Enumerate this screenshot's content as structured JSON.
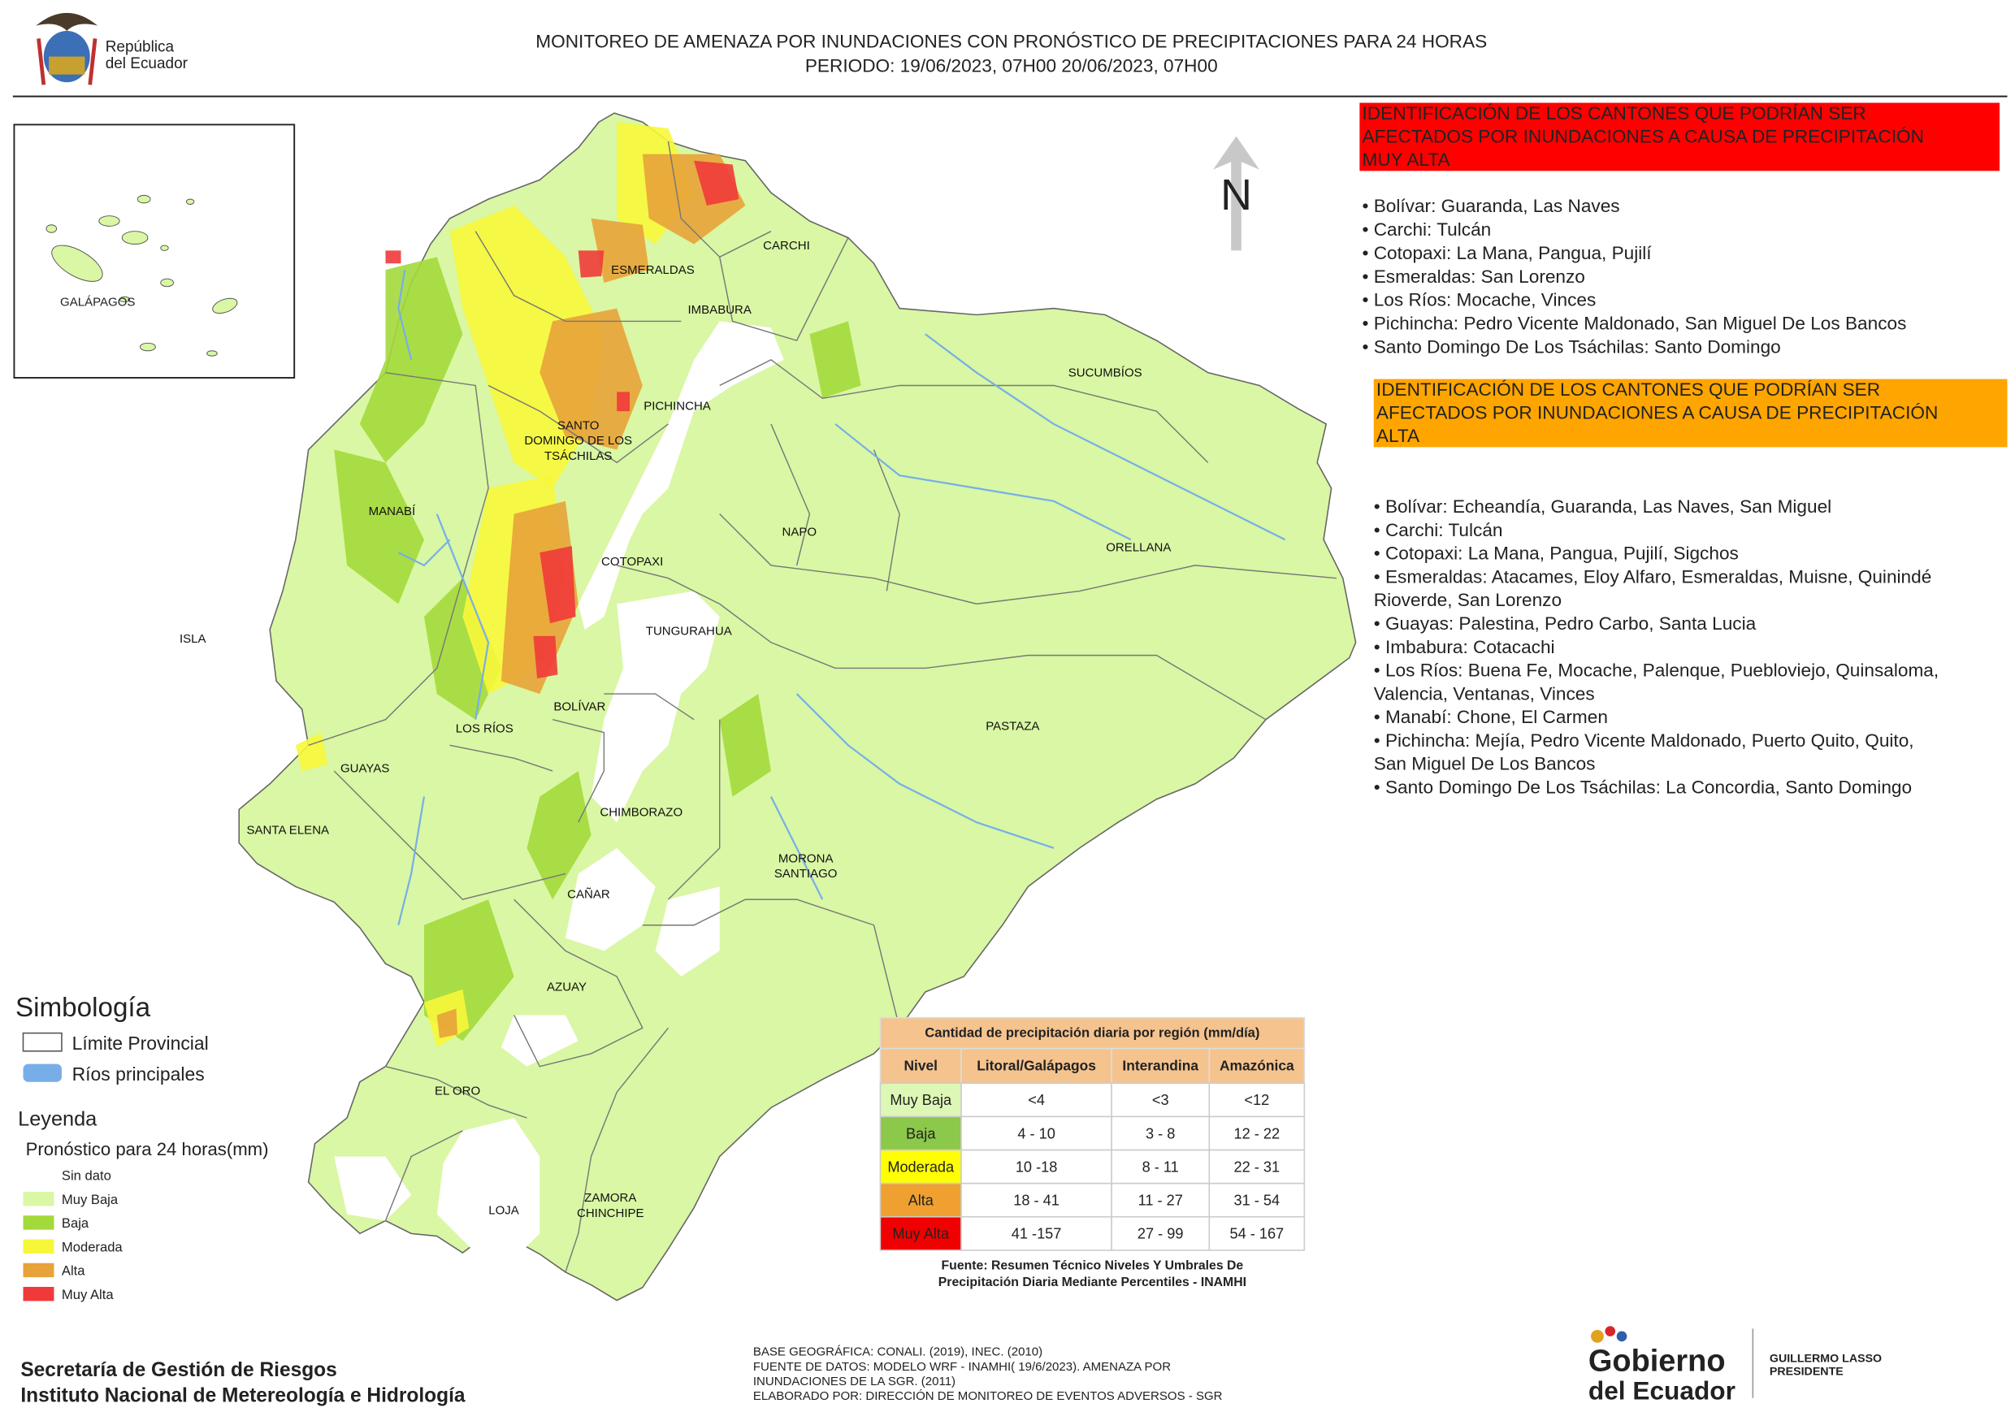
{
  "header": {
    "logo_text": [
      "República",
      "del Ecuador"
    ],
    "title_lines": [
      "MONITOREO DE AMENAZA POR INUNDACIONES  CON PRONÓSTICO DE  PRECIPITACIONES PARA 24 HORAS",
      "PERIODO: 19/06/2023, 07H00 20/06/2023, 07H00"
    ]
  },
  "inset": {
    "label": "GALÁPAGOS"
  },
  "map": {
    "north": "N",
    "provinces": [
      [
        "CARCHI"
      ],
      [
        "ESMERALDAS"
      ],
      [
        "IMBABURA"
      ],
      [
        "SUCUMBÍOS"
      ],
      [
        "PICHINCHA"
      ],
      [
        "SANTO",
        "DOMINGO DE LOS",
        "TSÁCHILAS"
      ],
      [
        "MANABÍ"
      ],
      [
        "NAPO"
      ],
      [
        "ORELLANA"
      ],
      [
        "COTOPAXI"
      ],
      [
        "ISLA"
      ],
      [
        "TUNGURAHUA"
      ],
      [
        "BOLÍVAR"
      ],
      [
        "LOS RÍOS"
      ],
      [
        "PASTAZA"
      ],
      [
        "GUAYAS"
      ],
      [
        "CHIMBORAZO"
      ],
      [
        "SANTA ELENA"
      ],
      [
        "MORONA",
        "SANTIAGO"
      ],
      [
        "CAÑAR"
      ],
      [
        "AZUAY"
      ],
      [
        "EL ORO"
      ],
      [
        "ZAMORA",
        "CHINCHIPE"
      ],
      [
        "LOJA"
      ]
    ]
  },
  "very_high": {
    "heading": [
      "IDENTIFICACIÓN DE LOS CANTONES QUE PODRÍAN SER",
      "AFECTADOS POR INUNDACIONES  A CAUSA DE PRECIPITACIÓN",
      "MUY ALTA"
    ],
    "items": [
      [
        "• Bolívar: Guaranda, Las Naves"
      ],
      [
        "• Carchi: Tulcán"
      ],
      [
        "• Cotopaxi: La Mana, Pangua, Pujilí"
      ],
      [
        "• Esmeraldas: San Lorenzo"
      ],
      [
        "• Los Ríos: Mocache, Vinces"
      ],
      [
        "• Pichincha: Pedro Vicente Maldonado, San Miguel De Los Bancos"
      ],
      [
        "• Santo Domingo De Los Tsáchilas: Santo Domingo"
      ]
    ]
  },
  "high": {
    "heading": [
      "IDENTIFICACIÓN DE LOS CANTONES QUE  PODRÍAN SER",
      "AFECTADOS POR INUNDACIONES  A CAUSA DE PRECIPITACIÓN",
      "ALTA"
    ],
    "items": [
      [
        "• Bolívar: Echeandía, Guaranda, Las Naves, San Miguel"
      ],
      [
        "• Carchi: Tulcán"
      ],
      [
        "• Cotopaxi: La Mana, Pangua, Pujilí, Sigchos"
      ],
      [
        "• Esmeraldas: Atacames, Eloy Alfaro, Esmeraldas, Muisne, Quinindé",
        "Rioverde, San Lorenzo"
      ],
      [
        "• Guayas: Palestina, Pedro Carbo, Santa Lucia"
      ],
      [
        "• Imbabura: Cotacachi"
      ],
      [
        "• Los Ríos: Buena Fe, Mocache, Palenque, Puebloviejo, Quinsaloma,",
        "Valencia, Ventanas, Vinces"
      ],
      [
        "• Manabí: Chone, El Carmen"
      ],
      [
        "• Pichincha: Mejía, Pedro Vicente Maldonado, Puerto Quito, Quito,",
        "San Miguel De Los Bancos"
      ],
      [
        "• Santo Domingo De Los Tsáchilas: La Concordia, Santo Domingo"
      ]
    ]
  },
  "legend": {
    "symbology_title": "Simbología",
    "symbology_items": [
      "Límite Provincial",
      "Ríos principales"
    ],
    "title": "Leyenda",
    "subtitle": "Pronóstico para 24 horas(mm)",
    "levels": [
      {
        "name": "Sin dato",
        "color": "#ffffff"
      },
      {
        "name": "Muy Baja",
        "color": "#d9f7a4"
      },
      {
        "name": "Baja",
        "color": "#a3d93b"
      },
      {
        "name": "Moderada",
        "color": "#f7f73a"
      },
      {
        "name": "Alta",
        "color": "#e8a23a"
      },
      {
        "name": "Muy Alta",
        "color": "#f03a3a"
      }
    ]
  },
  "table": {
    "title": "Cantidad de precipitación diaria por región (mm/día)",
    "headers": [
      "Nivel",
      "Litoral/Galápagos",
      "Interandina",
      "Amazónica"
    ],
    "rows": [
      [
        "Muy Baja",
        "<4",
        "<3",
        "<12"
      ],
      [
        "Baja",
        "4 - 10",
        "3 - 8",
        "12 - 22"
      ],
      [
        "Moderada",
        "10 -18",
        "8 - 11",
        "22 - 31"
      ],
      [
        "Alta",
        "18 - 41",
        "11 - 27",
        "31 - 54"
      ],
      [
        "Muy Alta",
        "41 -157",
        "27 - 99",
        "54 - 167"
      ]
    ],
    "row_colors": [
      "#ddf7b6",
      "#8cc84a",
      "#ffff00",
      "#f0a030",
      "#f00000"
    ],
    "source": [
      "Fuente: Resumen Técnico Niveles Y Umbrales De",
      "Precipitación Diaria Mediante Percentiles - INAMHI"
    ]
  },
  "footer": {
    "institutions": [
      "Secretaría de Gestión de Riesgos",
      "Instituto Nacional de Metereología e Hidrología"
    ],
    "credits": [
      "BASE GEOGRÁFICA: CONALI. (2019), INEC. (2010)",
      "FUENTE DE DATOS: MODELO WRF - INAMHI( 19/6/2023).  AMENAZA POR",
      "INUNDACIONES DE LA SGR. (2011)",
      "ELABORADO POR: DIRECCIÓN DE MONITOREO DE EVENTOS ADVERSOS - SGR"
    ],
    "gov_logo": [
      "Gobierno",
      "del Ecuador"
    ],
    "president": [
      "GUILLERMO LASSO",
      "PRESIDENTE"
    ]
  }
}
